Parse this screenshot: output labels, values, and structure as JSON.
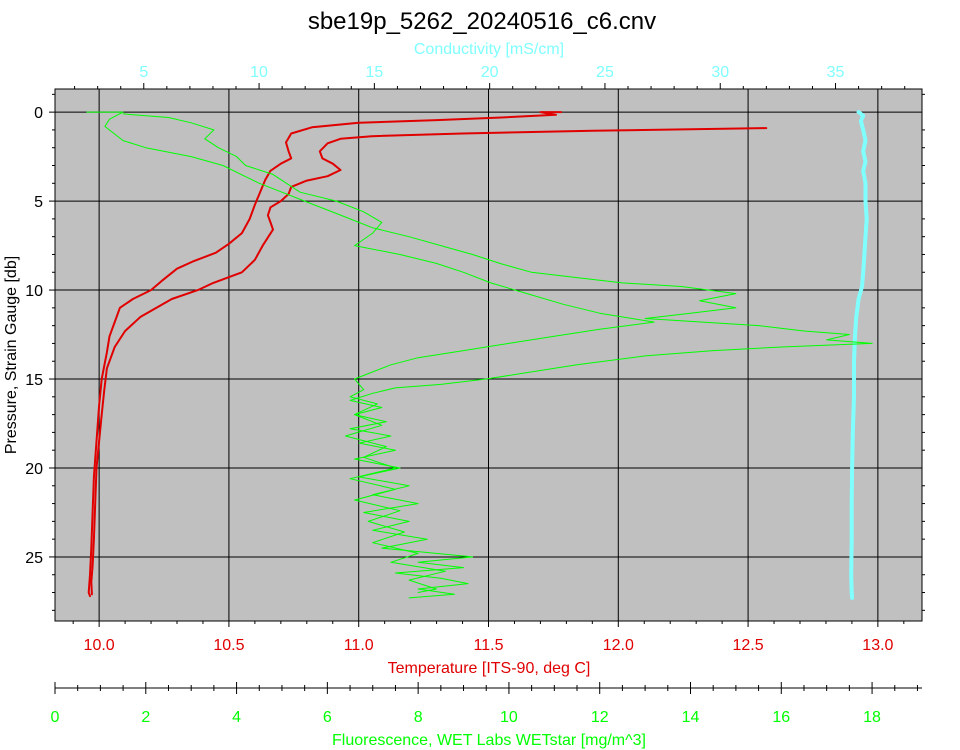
{
  "chart_data": {
    "type": "line",
    "title": "sbe19p_5262_20240516_c6.cnv",
    "y_axis": {
      "label": "Pressure, Strain Gauge [db]",
      "range": [
        -1.3,
        28.6
      ],
      "inverted": true,
      "ticks": [
        0,
        5,
        10,
        15,
        20,
        25
      ]
    },
    "axes": {
      "temperature": {
        "label": "Temperature [ITS-90, deg C]",
        "range": [
          9.83,
          13.17
        ],
        "ticks": [
          10.0,
          10.5,
          11.0,
          11.5,
          12.0,
          12.5,
          13.0
        ],
        "tick_labels": [
          "10.0",
          "10.5",
          "11.0",
          "11.5",
          "12.0",
          "12.5",
          "13.0"
        ],
        "color": "#e00000"
      },
      "conductivity": {
        "label": "Conductivity [mS/cm]",
        "range": [
          1.15,
          38.75
        ],
        "ticks": [
          5,
          10,
          15,
          20,
          25,
          30,
          35
        ],
        "color": "#80ffff"
      },
      "fluorescence": {
        "label": "Fluorescence, WET Labs WETstar [mg/m^3]",
        "range": [
          0,
          19.1
        ],
        "ticks": [
          0,
          2,
          4,
          6,
          8,
          10,
          12,
          14,
          16,
          18
        ],
        "color": "#00ff00"
      }
    },
    "grid": true,
    "background": "#c0c0c0",
    "series": [
      {
        "axis": "temperature",
        "color": "#e00000",
        "points": [
          [
            12.57,
            0.9
          ],
          [
            11.9,
            1.05
          ],
          [
            11.4,
            1.2
          ],
          [
            11.05,
            1.35
          ],
          [
            10.93,
            1.5
          ],
          [
            10.88,
            1.75
          ],
          [
            10.85,
            2.2
          ],
          [
            10.86,
            2.6
          ],
          [
            10.9,
            2.9
          ],
          [
            10.93,
            3.25
          ],
          [
            10.88,
            3.6
          ],
          [
            10.8,
            3.85
          ],
          [
            10.74,
            4.2
          ],
          [
            10.73,
            4.6
          ],
          [
            10.7,
            5.0
          ],
          [
            10.66,
            5.35
          ],
          [
            10.65,
            5.8
          ],
          [
            10.66,
            6.2
          ],
          [
            10.67,
            6.6
          ],
          [
            10.63,
            7.5
          ],
          [
            10.6,
            8.3
          ],
          [
            10.55,
            9.0
          ],
          [
            10.44,
            9.6
          ],
          [
            10.38,
            10.0
          ],
          [
            10.28,
            10.5
          ],
          [
            10.16,
            11.5
          ],
          [
            10.1,
            12.3
          ],
          [
            10.06,
            13.2
          ],
          [
            10.03,
            14.4
          ],
          [
            10.02,
            15.6
          ],
          [
            10.01,
            17.0
          ],
          [
            10.0,
            18.5
          ],
          [
            9.99,
            20.0
          ],
          [
            9.985,
            22.0
          ],
          [
            9.98,
            24.0
          ],
          [
            9.975,
            25.5
          ],
          [
            9.97,
            26.4
          ],
          [
            9.972,
            27.1
          ]
        ]
      },
      {
        "axis": "temperature",
        "color": "#e00000",
        "points": [
          [
            11.78,
            0.0
          ],
          [
            11.7,
            0.0
          ],
          [
            11.76,
            0.15
          ],
          [
            11.55,
            0.3
          ],
          [
            11.3,
            0.45
          ],
          [
            11.0,
            0.6
          ],
          [
            10.82,
            0.85
          ],
          [
            10.74,
            1.2
          ],
          [
            10.72,
            1.7
          ],
          [
            10.73,
            2.2
          ],
          [
            10.74,
            2.6
          ],
          [
            10.7,
            2.9
          ],
          [
            10.66,
            3.3
          ],
          [
            10.64,
            3.8
          ],
          [
            10.62,
            4.5
          ],
          [
            10.6,
            5.2
          ],
          [
            10.58,
            6.0
          ],
          [
            10.55,
            6.8
          ],
          [
            10.5,
            7.4
          ],
          [
            10.45,
            7.9
          ],
          [
            10.36,
            8.4
          ],
          [
            10.3,
            8.8
          ],
          [
            10.24,
            9.5
          ],
          [
            10.2,
            10.0
          ],
          [
            10.13,
            10.5
          ],
          [
            10.08,
            11.0
          ],
          [
            10.06,
            11.8
          ],
          [
            10.04,
            12.6
          ],
          [
            10.03,
            13.5
          ],
          [
            10.01,
            15.0
          ],
          [
            10.0,
            16.5
          ],
          [
            9.99,
            18.5
          ],
          [
            9.98,
            20.5
          ],
          [
            9.975,
            22.5
          ],
          [
            9.97,
            24.5
          ],
          [
            9.965,
            26.0
          ],
          [
            9.96,
            27.0
          ],
          [
            9.965,
            27.2
          ]
        ]
      },
      {
        "axis": "conductivity",
        "color": "#80ffff",
        "points": [
          [
            36.0,
            0.0
          ],
          [
            36.2,
            0.2
          ],
          [
            36.1,
            0.5
          ],
          [
            36.2,
            1.0
          ],
          [
            36.3,
            1.6
          ],
          [
            36.2,
            2.2
          ],
          [
            36.3,
            2.8
          ],
          [
            36.2,
            3.3
          ],
          [
            36.3,
            4.0
          ],
          [
            36.3,
            5.0
          ],
          [
            36.35,
            6.0
          ],
          [
            36.3,
            7.0
          ],
          [
            36.25,
            8.0
          ],
          [
            36.2,
            9.0
          ],
          [
            36.15,
            9.8
          ],
          [
            36.0,
            10.5
          ],
          [
            35.9,
            11.5
          ],
          [
            35.85,
            12.5
          ],
          [
            35.8,
            14.0
          ],
          [
            35.8,
            16.0
          ],
          [
            35.75,
            18.0
          ],
          [
            35.72,
            20.0
          ],
          [
            35.7,
            22.0
          ],
          [
            35.7,
            24.0
          ],
          [
            35.68,
            26.0
          ],
          [
            35.7,
            27.0
          ],
          [
            35.72,
            27.3
          ]
        ]
      },
      {
        "axis": "fluorescence",
        "color": "#00ff00",
        "points": [
          [
            0.7,
            0.0
          ],
          [
            1.5,
            0.0
          ],
          [
            1.2,
            0.4
          ],
          [
            1.1,
            0.8
          ],
          [
            1.3,
            1.2
          ],
          [
            1.5,
            1.6
          ],
          [
            2.0,
            2.0
          ],
          [
            3.0,
            2.5
          ],
          [
            3.7,
            3.0
          ],
          [
            4.1,
            3.5
          ],
          [
            4.5,
            4.0
          ],
          [
            5.0,
            4.5
          ],
          [
            5.5,
            5.0
          ],
          [
            6.0,
            5.5
          ],
          [
            6.5,
            6.0
          ],
          [
            7.0,
            6.5
          ],
          [
            7.8,
            7.0
          ],
          [
            8.5,
            7.5
          ],
          [
            9.2,
            8.0
          ],
          [
            9.8,
            8.5
          ],
          [
            10.5,
            9.0
          ],
          [
            11.5,
            9.3
          ],
          [
            12.5,
            9.6
          ],
          [
            13.8,
            9.8
          ],
          [
            15.0,
            10.2
          ],
          [
            14.2,
            10.6
          ],
          [
            15.0,
            11.0
          ],
          [
            14.0,
            11.3
          ],
          [
            13.0,
            11.6
          ],
          [
            15.5,
            12.0
          ],
          [
            16.5,
            12.3
          ],
          [
            17.5,
            12.5
          ],
          [
            17.0,
            12.8
          ],
          [
            18.0,
            13.0
          ],
          [
            16.0,
            13.2
          ],
          [
            14.5,
            13.4
          ],
          [
            13.0,
            13.7
          ],
          [
            11.5,
            14.2
          ],
          [
            10.5,
            14.6
          ],
          [
            9.5,
            15.0
          ],
          [
            8.5,
            15.3
          ],
          [
            7.5,
            15.5
          ],
          [
            7.0,
            15.8
          ],
          [
            6.5,
            16.2
          ],
          [
            7.2,
            16.6
          ],
          [
            6.6,
            17.0
          ],
          [
            7.3,
            17.4
          ],
          [
            6.5,
            17.8
          ],
          [
            7.4,
            18.2
          ],
          [
            6.7,
            18.6
          ],
          [
            7.5,
            19.0
          ],
          [
            6.6,
            19.5
          ],
          [
            7.6,
            20.0
          ],
          [
            6.7,
            20.5
          ],
          [
            7.8,
            21.0
          ],
          [
            7.0,
            21.5
          ],
          [
            8.0,
            22.0
          ],
          [
            6.8,
            22.5
          ],
          [
            7.8,
            23.0
          ],
          [
            7.0,
            23.5
          ],
          [
            8.2,
            24.0
          ],
          [
            7.2,
            24.5
          ],
          [
            9.2,
            25.0
          ],
          [
            8.0,
            25.3
          ],
          [
            9.0,
            25.6
          ],
          [
            7.5,
            25.9
          ],
          [
            8.5,
            26.2
          ],
          [
            9.1,
            26.5
          ],
          [
            8.0,
            26.8
          ],
          [
            8.8,
            27.1
          ],
          [
            7.8,
            27.3
          ]
        ]
      },
      {
        "axis": "fluorescence",
        "color": "#00ff00",
        "points": [
          [
            1.5,
            0.1
          ],
          [
            2.5,
            0.3
          ],
          [
            3.0,
            0.6
          ],
          [
            3.5,
            1.0
          ],
          [
            3.3,
            1.5
          ],
          [
            3.6,
            2.0
          ],
          [
            4.0,
            2.5
          ],
          [
            4.2,
            3.0
          ],
          [
            4.8,
            3.5
          ],
          [
            5.1,
            4.0
          ],
          [
            5.4,
            4.5
          ],
          [
            6.2,
            5.0
          ],
          [
            6.8,
            5.6
          ],
          [
            7.2,
            6.2
          ],
          [
            7.0,
            6.8
          ],
          [
            6.6,
            7.5
          ],
          [
            7.6,
            8.0
          ],
          [
            8.4,
            8.5
          ],
          [
            9.0,
            9.0
          ],
          [
            9.6,
            9.6
          ],
          [
            10.4,
            10.2
          ],
          [
            11.2,
            10.8
          ],
          [
            12.0,
            11.3
          ],
          [
            13.2,
            11.8
          ],
          [
            12.0,
            12.2
          ],
          [
            11.0,
            12.6
          ],
          [
            10.0,
            13.0
          ],
          [
            9.0,
            13.4
          ],
          [
            8.0,
            13.8
          ],
          [
            7.4,
            14.2
          ],
          [
            7.0,
            14.6
          ],
          [
            6.6,
            15.0
          ],
          [
            6.8,
            15.6
          ],
          [
            6.5,
            16.0
          ],
          [
            7.1,
            16.4
          ],
          [
            6.6,
            17.0
          ],
          [
            7.2,
            17.6
          ],
          [
            6.4,
            18.2
          ],
          [
            7.3,
            18.8
          ],
          [
            6.8,
            19.4
          ],
          [
            7.5,
            20.0
          ],
          [
            6.5,
            20.6
          ],
          [
            7.5,
            21.2
          ],
          [
            6.6,
            21.8
          ],
          [
            7.6,
            22.4
          ],
          [
            6.9,
            23.0
          ],
          [
            7.7,
            23.6
          ],
          [
            7.0,
            24.2
          ],
          [
            8.0,
            24.8
          ],
          [
            7.4,
            25.3
          ],
          [
            8.6,
            25.8
          ],
          [
            7.8,
            26.3
          ],
          [
            8.4,
            26.8
          ],
          [
            8.0,
            27.0
          ]
        ]
      }
    ]
  }
}
